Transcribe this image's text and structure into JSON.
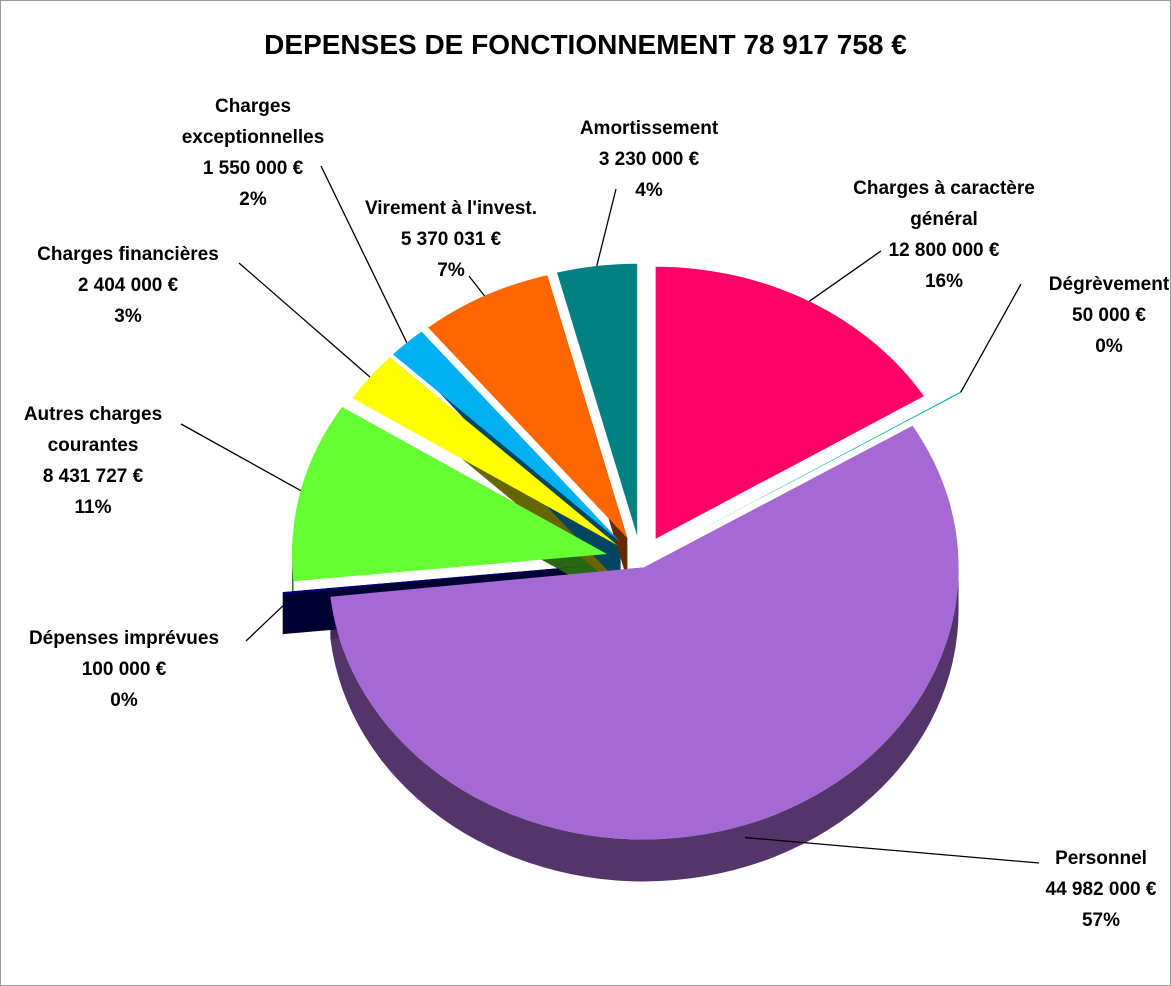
{
  "chart_data": {
    "type": "pie",
    "title": "DEPENSES  DE FONCTIONNEMENT  78 917 758 €",
    "categories": [
      "Charges à caractère général",
      "Dégrèvement",
      "Personnel",
      "Dépenses imprévues",
      "Autres charges courantes",
      "Charges financières",
      "Charges exceptionnelles",
      "Virement à l'invest.",
      "Amortissement"
    ],
    "values": [
      12800000,
      50000,
      44982000,
      100000,
      8431727,
      2404000,
      1550000,
      5370031,
      3230000
    ],
    "value_labels": [
      "12 800 000 €",
      "50 000 €",
      "44 982 000 €",
      "100 000 €",
      "8 431 727 €",
      "2 404 000 €",
      "1 550 000 €",
      "5 370 031 €",
      "3 230 000 €"
    ],
    "percent_labels": [
      "16%",
      "0%",
      "57%",
      "0%",
      "11%",
      "3%",
      "2%",
      "7%",
      "4%"
    ],
    "colors": [
      "#ff0066",
      "#00aaaa",
      "#a569d4",
      "#000080",
      "#66ff33",
      "#ffff00",
      "#00b0f0",
      "#ff6600",
      "#008080"
    ]
  }
}
